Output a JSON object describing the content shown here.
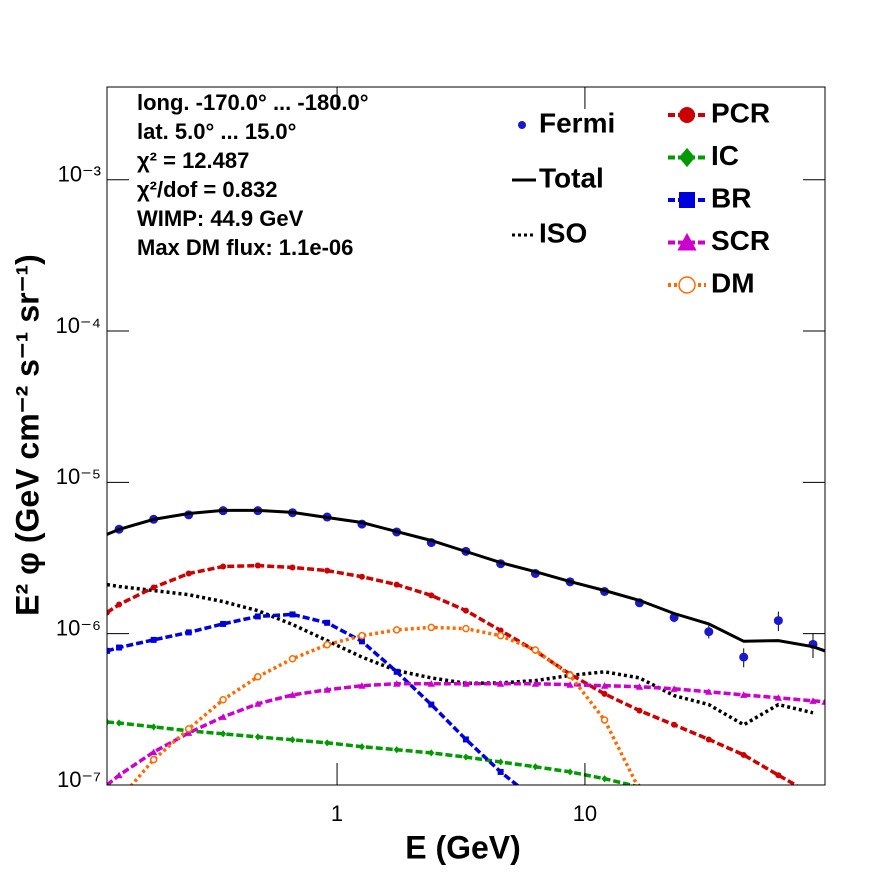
{
  "chart_data": {
    "type": "line",
    "xlabel": "E (GeV)",
    "ylabel": "E² φ (GeV cm⁻² s⁻¹ sr⁻¹)",
    "log_x": true,
    "log_y": true,
    "xlim": [
      0.118,
      93
    ],
    "ylim": [
      1e-07,
      0.0041
    ],
    "xticks": [
      1,
      10
    ],
    "yticks": [
      {
        "value": 1e-07,
        "label": "10⁻⁷"
      },
      {
        "value": 1e-06,
        "label": "10⁻⁶"
      },
      {
        "value": 1e-05,
        "label": "10⁻⁵"
      },
      {
        "value": 0.0001,
        "label": "10⁻⁴"
      },
      {
        "value": 0.001,
        "label": "10⁻³"
      }
    ],
    "annotations": [
      "long. -170.0° ... -180.0°",
      "lat. 5.0° ... 15.0°",
      "χ² = 12.487",
      "χ²/dof = 0.832",
      "WIMP: 44.9 GeV",
      "Max DM flux: 1.1e-06"
    ],
    "x": [
      0.118,
      0.132,
      0.182,
      0.252,
      0.347,
      0.479,
      0.661,
      0.912,
      1.26,
      1.74,
      2.4,
      3.31,
      4.57,
      6.31,
      8.71,
      12.0,
      16.6,
      22.9,
      31.6,
      43.7,
      60.3,
      83.2,
      93
    ],
    "series": [
      {
        "name": "Fermi",
        "color": "#1a1acc",
        "line": "none",
        "marker": "circle",
        "values": [
          null,
          4.9e-06,
          5.7e-06,
          6.1e-06,
          6.5e-06,
          6.5e-06,
          6.3e-06,
          5.9e-06,
          5.3e-06,
          4.7e-06,
          4e-06,
          3.5e-06,
          2.9e-06,
          2.5e-06,
          2.2e-06,
          1.9e-06,
          1.6e-06,
          1.28e-06,
          1.03e-06,
          7e-07,
          1.22e-06,
          8.5e-07,
          null
        ],
        "errors": [
          null,
          1e-07,
          1e-07,
          1e-07,
          1e-07,
          1e-07,
          1e-07,
          1e-07,
          1e-07,
          1e-07,
          8e-08,
          7e-08,
          6e-08,
          6e-08,
          6e-08,
          6e-08,
          8e-08,
          9e-08,
          1e-07,
          1e-07,
          1.8e-07,
          1.6e-07,
          null
        ]
      },
      {
        "name": "Total",
        "color": "#000000",
        "line": "solid",
        "marker": "none",
        "values": [
          4.53e-06,
          4.89e-06,
          5.69e-06,
          6.23e-06,
          6.53e-06,
          6.53e-06,
          6.33e-06,
          5.86e-06,
          5.43e-06,
          4.73e-06,
          4.13e-06,
          3.49e-06,
          2.95e-06,
          2.57e-06,
          2.21e-06,
          1.93e-06,
          1.66e-06,
          1.36e-06,
          1.16e-06,
          8.9e-07,
          9e-07,
          8.2e-07,
          7.7e-07
        ]
      },
      {
        "name": "ISO",
        "color": "#000000",
        "line": "dotted",
        "marker": "none",
        "values": [
          2.11e-06,
          2.05e-06,
          1.93e-06,
          1.81e-06,
          1.63e-06,
          1.42e-06,
          1.15e-06,
          9e-07,
          7e-07,
          5.7e-07,
          5.1e-07,
          4.7e-07,
          4.73e-07,
          4.9e-07,
          5.3e-07,
          5.6e-07,
          5.1e-07,
          3.9e-07,
          3.4e-07,
          2.5e-07,
          3.4e-07,
          3e-07,
          null
        ]
      },
      {
        "name": "PCR",
        "color": "#cc0000",
        "line": "dashed",
        "marker": "circle",
        "values": [
          1.38e-06,
          1.56e-06,
          2.02e-06,
          2.5e-06,
          2.78e-06,
          2.82e-06,
          2.74e-06,
          2.61e-06,
          2.38e-06,
          2.11e-06,
          1.79e-06,
          1.42e-06,
          1.05e-06,
          7.7e-07,
          5.4e-07,
          4e-07,
          3.1e-07,
          2.5e-07,
          2e-07,
          1.58e-07,
          1.16e-07,
          8.6e-08,
          8e-08
        ]
      },
      {
        "name": "IC",
        "color": "#009900",
        "line": "dashed",
        "marker": "diamond",
        "values": [
          2.61e-07,
          2.57e-07,
          2.42e-07,
          2.28e-07,
          2.18e-07,
          2.08e-07,
          1.99e-07,
          1.9e-07,
          1.79e-07,
          1.71e-07,
          1.63e-07,
          1.53e-07,
          1.42e-07,
          1.32e-07,
          1.22e-07,
          1.1e-07,
          9.7e-08,
          null,
          null,
          null,
          null,
          null,
          null
        ]
      },
      {
        "name": "BR",
        "color": "#0000dd",
        "line": "dashed",
        "marker": "square",
        "values": [
          7.7e-07,
          8.1e-07,
          9.1e-07,
          1.02e-06,
          1.16e-06,
          1.3e-06,
          1.34e-06,
          1.18e-06,
          8.9e-07,
          5.6e-07,
          3.4e-07,
          2e-07,
          1.22e-07,
          8e-08,
          null,
          null,
          null,
          null,
          null,
          null,
          null,
          null,
          null
        ]
      },
      {
        "name": "SCR",
        "color": "#cc00cc",
        "line": "dashed",
        "marker": "triangle",
        "values": [
          1e-07,
          1.16e-07,
          1.65e-07,
          2.21e-07,
          2.82e-07,
          3.44e-07,
          3.94e-07,
          4.26e-07,
          4.53e-07,
          4.67e-07,
          4.67e-07,
          4.67e-07,
          4.67e-07,
          4.67e-07,
          4.6e-07,
          4.53e-07,
          4.46e-07,
          4.32e-07,
          4.13e-07,
          3.94e-07,
          3.77e-07,
          3.6e-07,
          3.55e-07
        ]
      },
      {
        "name": "DM",
        "color": "#ff6a00",
        "line": "dotted",
        "marker": "open-circle",
        "values": [
          null,
          8e-08,
          1.47e-07,
          2.35e-07,
          3.66e-07,
          5.19e-07,
          6.83e-07,
          8.45e-07,
          9.7e-07,
          1.06e-06,
          1.1e-06,
          1.08e-06,
          9.7e-07,
          7.8e-07,
          5.3e-07,
          2.69e-07,
          9.3e-08,
          null,
          null,
          null,
          null,
          null,
          null
        ]
      }
    ]
  }
}
